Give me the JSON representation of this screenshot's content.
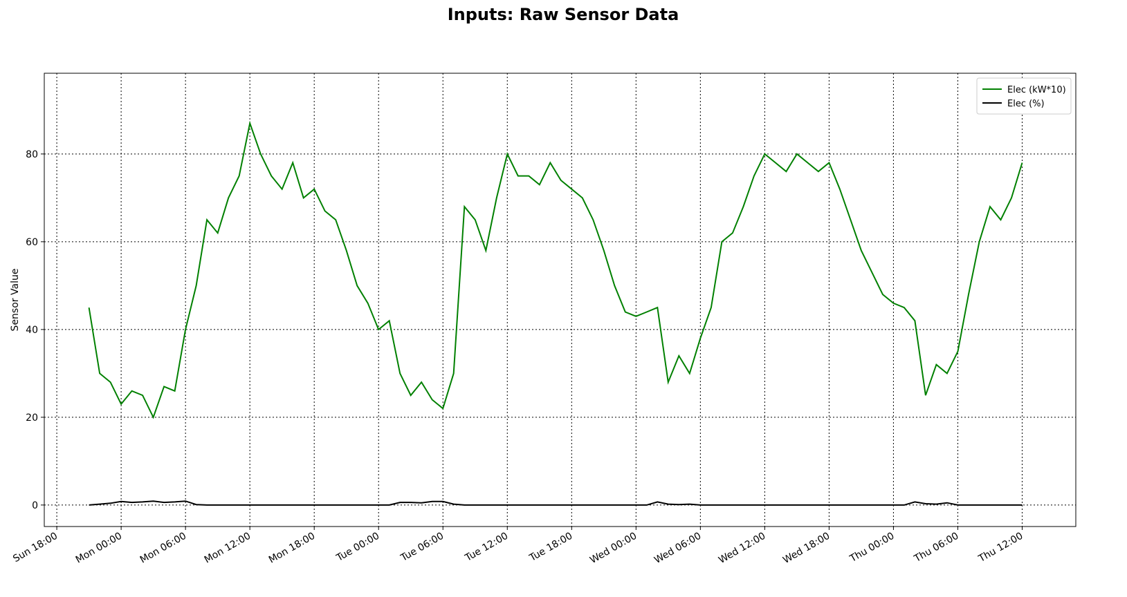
{
  "chart_data": {
    "type": "line",
    "title": "Inputs: Raw Sensor Data",
    "y_label": "Sensor Value",
    "x": [
      "Sun 21:00",
      "Sun 22:00",
      "Sun 23:00",
      "Mon 00:00",
      "Mon 01:00",
      "Mon 02:00",
      "Mon 03:00",
      "Mon 04:00",
      "Mon 05:00",
      "Mon 06:00",
      "Mon 07:00",
      "Mon 08:00",
      "Mon 09:00",
      "Mon 10:00",
      "Mon 11:00",
      "Mon 12:00",
      "Mon 13:00",
      "Mon 14:00",
      "Mon 15:00",
      "Mon 16:00",
      "Mon 17:00",
      "Mon 18:00",
      "Mon 19:00",
      "Mon 20:00",
      "Mon 21:00",
      "Mon 22:00",
      "Mon 23:00",
      "Tue 00:00",
      "Tue 01:00",
      "Tue 02:00",
      "Tue 03:00",
      "Tue 04:00",
      "Tue 05:00",
      "Tue 06:00",
      "Tue 07:00",
      "Tue 08:00",
      "Tue 09:00",
      "Tue 10:00",
      "Tue 11:00",
      "Tue 12:00",
      "Tue 13:00",
      "Tue 14:00",
      "Tue 15:00",
      "Tue 16:00",
      "Tue 17:00",
      "Tue 18:00",
      "Tue 19:00",
      "Tue 20:00",
      "Tue 21:00",
      "Tue 22:00",
      "Tue 23:00",
      "Wed 00:00",
      "Wed 01:00",
      "Wed 02:00",
      "Wed 03:00",
      "Wed 04:00",
      "Wed 05:00",
      "Wed 06:00",
      "Wed 07:00",
      "Wed 08:00",
      "Wed 09:00",
      "Wed 10:00",
      "Wed 11:00",
      "Wed 12:00",
      "Wed 13:00",
      "Wed 14:00",
      "Wed 15:00",
      "Wed 16:00",
      "Wed 17:00",
      "Wed 18:00",
      "Wed 19:00",
      "Wed 20:00",
      "Wed 21:00",
      "Wed 22:00",
      "Wed 23:00",
      "Thu 00:00",
      "Thu 01:00",
      "Thu 02:00",
      "Thu 03:00",
      "Thu 04:00",
      "Thu 05:00",
      "Thu 06:00",
      "Thu 07:00",
      "Thu 08:00",
      "Thu 09:00",
      "Thu 10:00",
      "Thu 11:00",
      "Thu 12:00"
    ],
    "series": [
      {
        "name": "Elec (kW*10)",
        "color": "#008000",
        "values": [
          45,
          30,
          28,
          23,
          26,
          25,
          20,
          27,
          26,
          40,
          50,
          65,
          62,
          70,
          75,
          87,
          80,
          75,
          72,
          78,
          70,
          72,
          67,
          65,
          58,
          50,
          46,
          40,
          42,
          30,
          25,
          28,
          24,
          22,
          30,
          68,
          65,
          58,
          70,
          80,
          75,
          75,
          73,
          78,
          74,
          72,
          70,
          65,
          58,
          50,
          44,
          43,
          44,
          45,
          28,
          34,
          30,
          38,
          45,
          60,
          62,
          68,
          75,
          80,
          78,
          76,
          80,
          78,
          76,
          78,
          72,
          65,
          58,
          53,
          48,
          46,
          45,
          42,
          25,
          32,
          30,
          35,
          48,
          60,
          68,
          65,
          70,
          78
        ]
      },
      {
        "name": "Elec (%)",
        "color": "#000000",
        "values": [
          0,
          0.2,
          0.4,
          0.8,
          0.6,
          0.7,
          0.9,
          0.6,
          0.7,
          0.9,
          0.1,
          0,
          0,
          0,
          0,
          0,
          0,
          0,
          0,
          0,
          0,
          0,
          0,
          0,
          0,
          0,
          0,
          0,
          0,
          0.6,
          0.6,
          0.5,
          0.8,
          0.8,
          0.2,
          0,
          0,
          0,
          0,
          0,
          0,
          0,
          0,
          0,
          0,
          0,
          0,
          0,
          0,
          0,
          0,
          0,
          0,
          0.7,
          0.2,
          0.1,
          0.2,
          0,
          0,
          0,
          0,
          0,
          0,
          0,
          0,
          0,
          0,
          0,
          0,
          0,
          0,
          0,
          0,
          0,
          0,
          0,
          0,
          0.7,
          0.3,
          0.2,
          0.5,
          0,
          0,
          0,
          0,
          0,
          0,
          0
        ]
      }
    ],
    "xlim": [
      "Sun 16:50",
      "Thu 17:00"
    ],
    "xticks": [
      "Sun 18:00",
      "Mon 00:00",
      "Mon 06:00",
      "Mon 12:00",
      "Mon 18:00",
      "Tue 00:00",
      "Tue 06:00",
      "Tue 12:00",
      "Tue 18:00",
      "Wed 00:00",
      "Wed 06:00",
      "Wed 12:00",
      "Wed 18:00",
      "Thu 00:00",
      "Thu 06:00",
      "Thu 12:00"
    ],
    "ylim": [
      -4.9,
      98.4
    ],
    "yticks": [
      0,
      20,
      40,
      60,
      80
    ],
    "grid": true,
    "legend": "upper right"
  }
}
